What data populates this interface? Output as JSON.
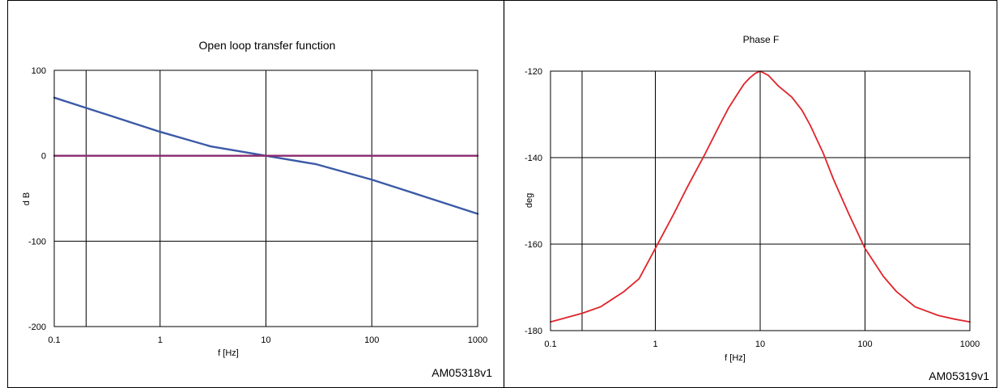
{
  "chart_data": [
    {
      "type": "line",
      "title": "Open loop transfer function",
      "xlabel": "f [Hz]",
      "ylabel": "d B",
      "x_scale": "log",
      "xlim": [
        0.1,
        1000
      ],
      "ylim": [
        -200,
        100
      ],
      "x_ticks": [
        "0.1",
        "1",
        "10",
        "100",
        "1000"
      ],
      "y_ticks": [
        "100",
        "0",
        "-100",
        "-200"
      ],
      "grid": true,
      "extra_vertical_gridline_at": 0.2,
      "figure_code": "AM05318v1",
      "series": [
        {
          "color": "#3b5aa6",
          "x": [
            0.1,
            0.2,
            1,
            3,
            10,
            30,
            100,
            300,
            1000
          ],
          "y": [
            68,
            56,
            28,
            11,
            0,
            -10,
            -28,
            -47,
            -68
          ]
        },
        {
          "color": "#8b2a6e",
          "x": [
            0.1,
            1000
          ],
          "y": [
            0,
            0
          ]
        }
      ]
    },
    {
      "type": "line",
      "title": "Phase F",
      "xlabel": "f [Hz]",
      "ylabel": "deg",
      "x_scale": "log",
      "xlim": [
        0.1,
        1000
      ],
      "ylim": [
        -180,
        -120
      ],
      "x_ticks": [
        "0.1",
        "1",
        "10",
        "100",
        "1000"
      ],
      "y_ticks": [
        "-120",
        "-140",
        "-160",
        "-180"
      ],
      "grid": true,
      "extra_vertical_gridline_at": 0.2,
      "figure_code": "AM05319v1",
      "series": [
        {
          "color": "#e0242a",
          "x": [
            0.1,
            0.2,
            0.3,
            0.5,
            0.7,
            1,
            1.5,
            2,
            3,
            4,
            5,
            6,
            7,
            8,
            9,
            10,
            12,
            15,
            20,
            25,
            30,
            40,
            50,
            70,
            100,
            150,
            200,
            300,
            500,
            700,
            1000
          ],
          "y": [
            -178,
            -176,
            -174.5,
            -171,
            -168,
            -161,
            -153,
            -147,
            -139,
            -133,
            -128.5,
            -125.5,
            -123,
            -121.5,
            -120.5,
            -120,
            -121,
            -123.5,
            -126,
            -129,
            -132.5,
            -139,
            -145,
            -153,
            -161,
            -167.5,
            -171,
            -174.5,
            -176.5,
            -177.3,
            -178
          ]
        }
      ]
    }
  ]
}
